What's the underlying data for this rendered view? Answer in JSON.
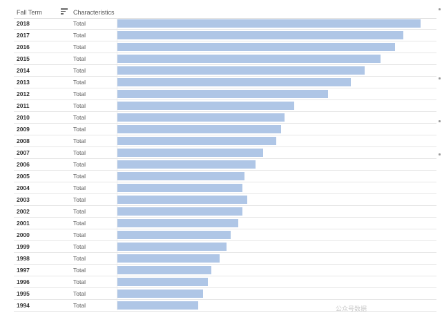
{
  "header": {
    "term_label": "Fall Term",
    "characteristics_label": "Characteristics"
  },
  "chart_data": {
    "type": "bar",
    "orientation": "horizontal",
    "categories": [
      "2018",
      "2017",
      "2016",
      "2015",
      "2014",
      "2013",
      "2012",
      "2011",
      "2010",
      "2009",
      "2008",
      "2007",
      "2006",
      "2005",
      "2004",
      "2003",
      "2002",
      "2001",
      "2000",
      "1999",
      "1998",
      "1997",
      "1996",
      "1995",
      "1994"
    ],
    "characteristic": "Total",
    "values": [
      439,
      414,
      402,
      381,
      358,
      338,
      305,
      256,
      242,
      237,
      230,
      211,
      200,
      184,
      181,
      188,
      181,
      175,
      164,
      158,
      148,
      136,
      131,
      124,
      117
    ],
    "xlim": [
      0,
      450
    ],
    "bar_color": "#afc6e6",
    "grid": false,
    "legend": "none"
  },
  "watermark": {
    "text": "公众号数据"
  }
}
